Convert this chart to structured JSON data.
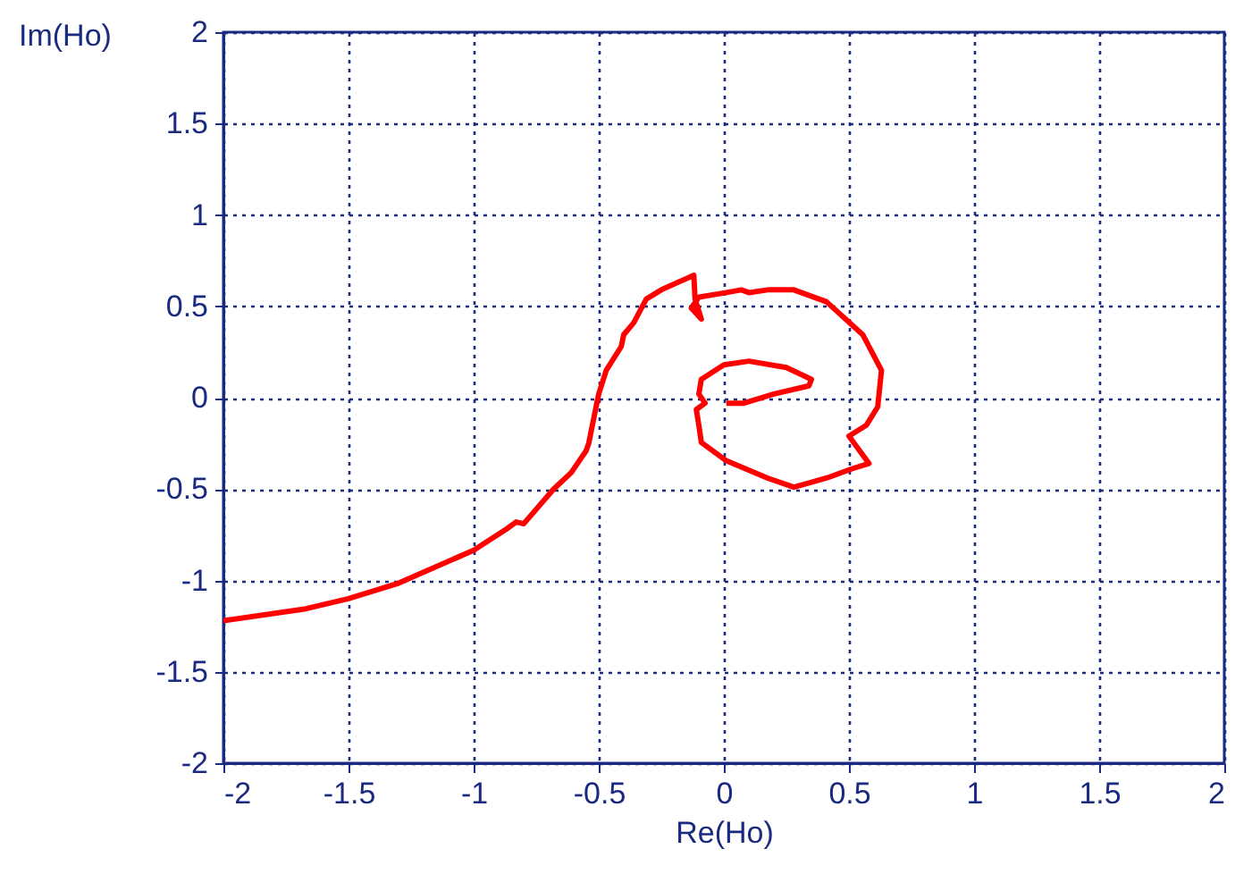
{
  "chart_data": {
    "type": "line",
    "xlabel": "Re(Ho)",
    "ylabel": "Im(Ho)",
    "xlim": [
      -2,
      2
    ],
    "ylim": [
      -2,
      2
    ],
    "xticks": [
      -2,
      -1.5,
      -1,
      -0.5,
      0,
      0.5,
      1,
      1.5,
      2
    ],
    "yticks": [
      -2,
      -1.5,
      -1,
      -0.5,
      0,
      0.5,
      1,
      1.5,
      2
    ],
    "grid": true,
    "line_style": "solid",
    "x": [
      -2,
      -1.67,
      -1.5,
      -1.3,
      -1.0,
      -0.87,
      -0.83,
      -0.8,
      -0.68,
      -0.61,
      -0.55,
      -0.54,
      -0.515,
      -0.5,
      -0.47,
      -0.41,
      -0.4,
      -0.36,
      -0.31,
      -0.25,
      -0.12,
      -0.115,
      -0.09,
      -0.13,
      -0.1,
      0.01,
      0.07,
      0.1,
      0.175,
      0.28,
      0.41,
      0.555,
      0.63,
      0.615,
      0.57,
      0.5,
      0.58,
      0.51,
      0.41,
      0.28,
      0.175,
      0.01,
      -0.09,
      -0.1,
      -0.11,
      -0.075,
      -0.1,
      -0.09,
      0.0,
      0.1,
      0.25,
      0.35,
      0.34,
      0.2,
      0.08,
      0.01
    ],
    "series": [
      {
        "color": "#ff0000",
        "values": [
          -1.22,
          -1.155,
          -1.1,
          -1.015,
          -0.835,
          -0.72,
          -0.68,
          -0.69,
          -0.5,
          -0.41,
          -0.29,
          -0.25,
          -0.08,
          0.02,
          0.15,
          0.28,
          0.345,
          0.41,
          0.54,
          0.59,
          0.67,
          0.54,
          0.43,
          0.49,
          0.55,
          0.575,
          0.59,
          0.575,
          0.59,
          0.59,
          0.525,
          0.345,
          0.15,
          -0.05,
          -0.15,
          -0.21,
          -0.36,
          -0.39,
          -0.44,
          -0.49,
          -0.44,
          -0.345,
          -0.245,
          -0.15,
          -0.065,
          -0.03,
          0.02,
          0.1,
          0.18,
          0.2,
          0.165,
          0.1,
          0.065,
          0.02,
          -0.03,
          -0.03
        ]
      }
    ]
  }
}
